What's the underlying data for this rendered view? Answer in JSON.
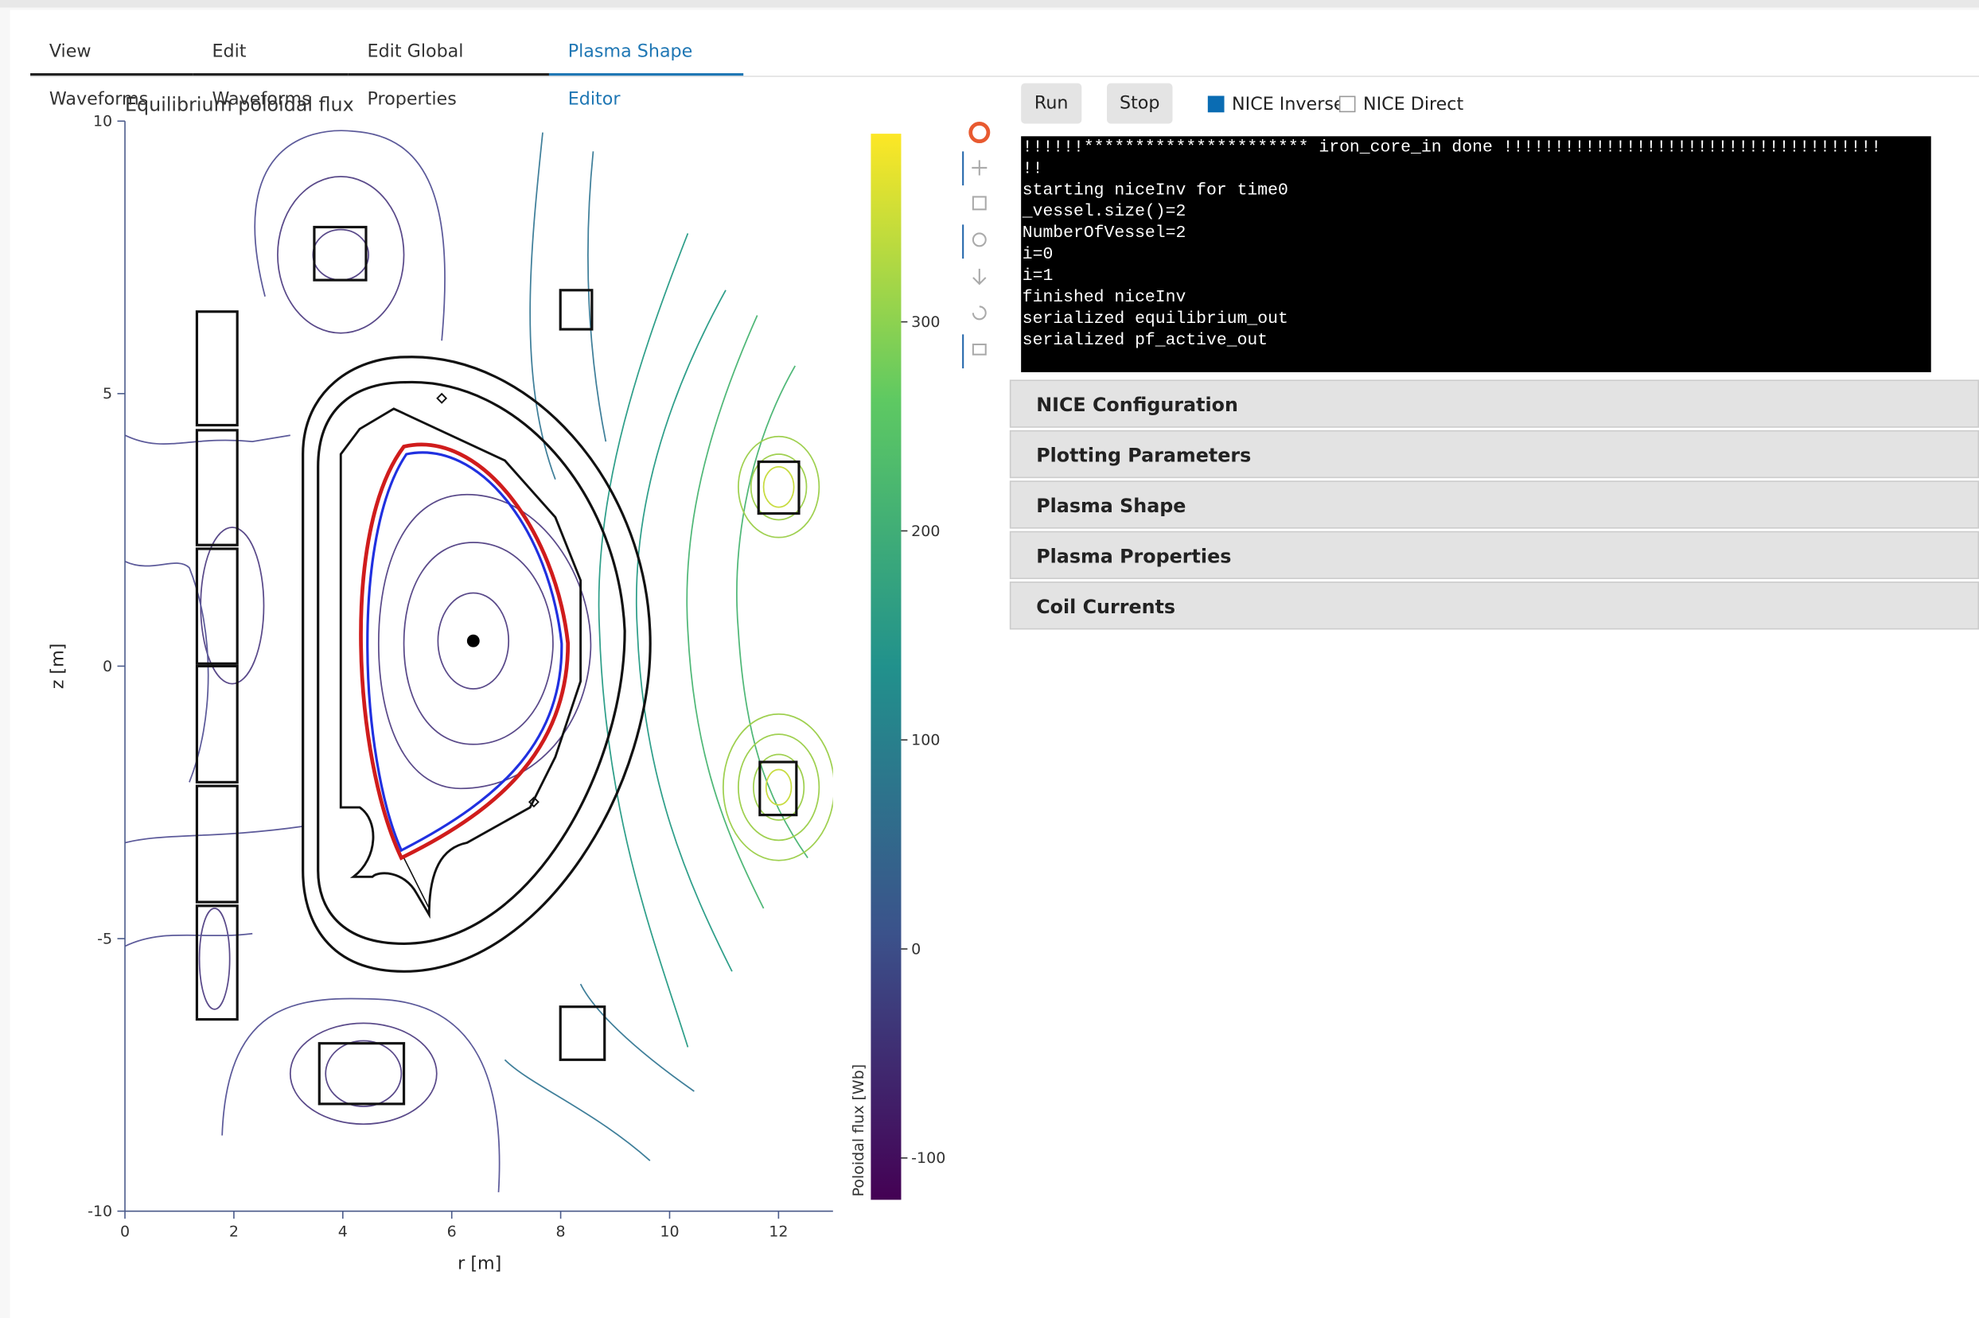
{
  "tabs": [
    "View Waveforms",
    "Edit Waveforms",
    "Edit Global Properties",
    "Plasma Shape Editor"
  ],
  "plot": {
    "title": "Equilibrium poloidal flux",
    "x_label": "r [m]",
    "y_label": "z [m]",
    "xlim": [
      0,
      13
    ],
    "ylim": [
      -10,
      10
    ],
    "xticks": [
      0,
      2,
      4,
      6,
      8,
      10,
      12
    ],
    "yticks": [
      -10,
      -5,
      0,
      5,
      10
    ],
    "colorbar": {
      "label": "Poloidal flux [Wb]",
      "lim": [
        -120,
        390
      ],
      "ticks": [
        -100,
        0,
        100,
        200,
        300
      ]
    }
  },
  "buttons": [
    "Run",
    "Stop"
  ],
  "checkboxes": [
    {
      "label": "NICE Inverse",
      "checked": true
    },
    {
      "label": "NICE Direct",
      "checked": false
    }
  ],
  "console_lines": [
    "!!!!!!********************** iron_core_in done !!!!!!!!!!!!!!!!!!!!!!!!!!!!!!!!!!!!!",
    "!!",
    "starting niceInv for time0",
    "_vessel.size()=2",
    "NumberOfVessel=2",
    "i=0",
    "i=1",
    "finished niceInv",
    "serialized equilibrium_out",
    "serialized pf_active_out"
  ],
  "accordion": [
    "NICE Configuration",
    "Plotting Parameters",
    "Plasma Shape",
    "Plasma Properties",
    "Coil Currents"
  ]
}
